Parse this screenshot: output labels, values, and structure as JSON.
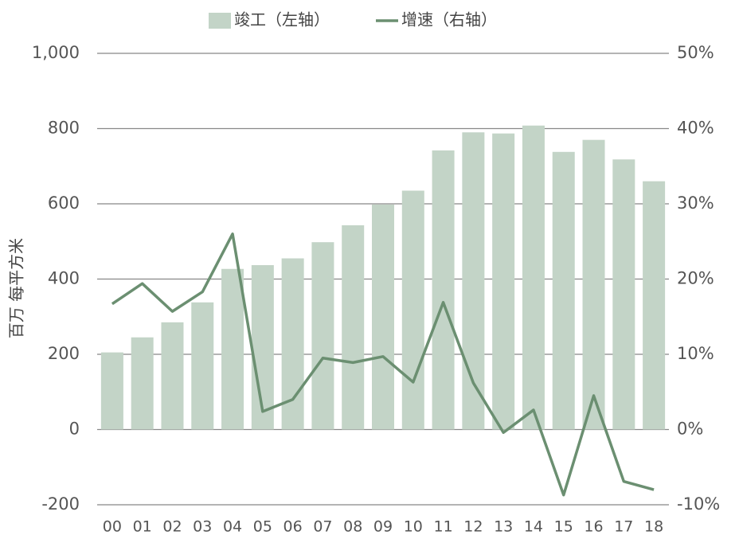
{
  "chart_data": {
    "type": "bar",
    "categories": [
      "00",
      "01",
      "02",
      "03",
      "04",
      "05",
      "06",
      "07",
      "08",
      "09",
      "10",
      "11",
      "12",
      "13",
      "14",
      "15",
      "16",
      "17",
      "18"
    ],
    "y_label": "百万 每平方米",
    "series": [
      {
        "name": "竣工（左轴）",
        "type": "bar",
        "color": "#c3d4c7",
        "values": [
          205,
          245,
          285,
          338,
          427,
          437,
          455,
          498,
          543,
          598,
          635,
          742,
          790,
          787,
          808,
          738,
          770,
          718,
          660
        ]
      },
      {
        "name": "增速（右轴）",
        "type": "line",
        "axis": "y2",
        "color": "#6b8f71",
        "values": [
          16.7,
          19.4,
          15.7,
          18.3,
          26.0,
          2.4,
          4.0,
          9.5,
          8.9,
          9.7,
          6.3,
          16.9,
          6.2,
          -0.4,
          2.6,
          -8.7,
          4.5,
          -6.9,
          -8.0
        ]
      }
    ],
    "ylim": [
      -200,
      1000
    ],
    "yticks": [
      -200,
      0,
      200,
      400,
      600,
      800,
      {
        "value": 1000,
        "label": "1,000"
      }
    ],
    "y2lim": [
      -10,
      50
    ],
    "y2ticks": [
      {
        "value": -10,
        "label": "-10%"
      },
      {
        "value": 0,
        "label": "0%"
      },
      {
        "value": 10,
        "label": "10%"
      },
      {
        "value": 20,
        "label": "20%"
      },
      {
        "value": 30,
        "label": "30%"
      },
      {
        "value": 40,
        "label": "40%"
      },
      {
        "value": 50,
        "label": "50%"
      }
    ],
    "grid": true,
    "legend": "top"
  }
}
